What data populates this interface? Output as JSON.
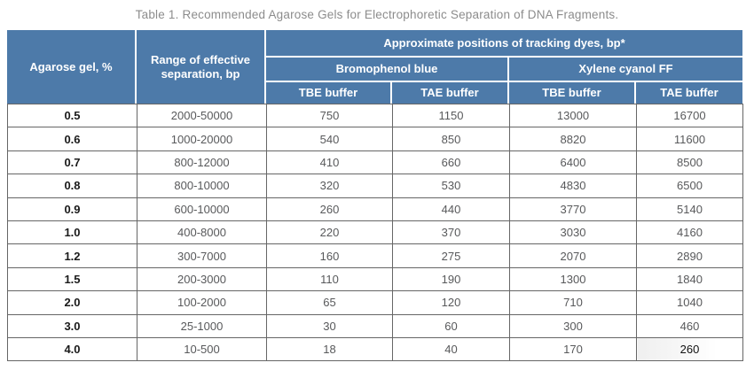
{
  "title": "Table 1. Recommended Agarose Gels for Electrophoretic Separation of DNA Fragments.",
  "colors": {
    "header_bg": "#4d7aa9",
    "header_text": "#ffffff",
    "grid": "#666666",
    "data_text": "#58595b",
    "title_text": "#8c8c8c"
  },
  "table": {
    "header": {
      "col1": "Agarose gel, %",
      "col2": "Range of effective separation, bp",
      "group": "Approximate positions of tracking dyes, bp*",
      "subgroups": [
        "Bromophenol blue",
        "Xylene cyanol FF"
      ],
      "buffer_cols": [
        "TBE buffer",
        "TAE buffer",
        "TBE buffer",
        "TAE buffer"
      ]
    },
    "rows": [
      {
        "gel": "0.5",
        "range": "2000-50000",
        "values": [
          "750",
          "1150",
          "13000",
          "16700"
        ]
      },
      {
        "gel": "0.6",
        "range": "1000-20000",
        "values": [
          "540",
          "850",
          "8820",
          "11600"
        ]
      },
      {
        "gel": "0.7",
        "range": "800-12000",
        "values": [
          "410",
          "660",
          "6400",
          "8500"
        ]
      },
      {
        "gel": "0.8",
        "range": "800-10000",
        "values": [
          "320",
          "530",
          "4830",
          "6500"
        ]
      },
      {
        "gel": "0.9",
        "range": "600-10000",
        "values": [
          "260",
          "440",
          "3770",
          "5140"
        ]
      },
      {
        "gel": "1.0",
        "range": "400-8000",
        "values": [
          "220",
          "370",
          "3030",
          "4160"
        ]
      },
      {
        "gel": "1.2",
        "range": "300-7000",
        "values": [
          "160",
          "275",
          "2070",
          "2890"
        ]
      },
      {
        "gel": "1.5",
        "range": "200-3000",
        "values": [
          "110",
          "190",
          "1300",
          "1840"
        ]
      },
      {
        "gel": "2.0",
        "range": "100-2000",
        "values": [
          "65",
          "120",
          "710",
          "1040"
        ]
      },
      {
        "gel": "3.0",
        "range": "25-1000",
        "values": [
          "30",
          "60",
          "300",
          "460"
        ]
      },
      {
        "gel": "4.0",
        "range": "10-500",
        "values": [
          "18",
          "40",
          "170",
          "260"
        ]
      }
    ],
    "edited_cell": {
      "row": 10,
      "value_index": 3
    }
  }
}
